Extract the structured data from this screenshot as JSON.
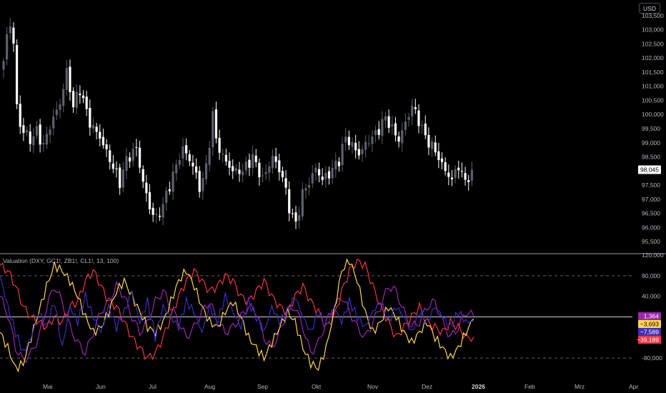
{
  "currency_button": "USD",
  "indicator_label": "Valuation (DXY, GC1!, ZB1!, CL1!, 13, 100)",
  "chart_data": [
    {
      "type": "candlestick",
      "title": "",
      "ylim": [
        95200,
        103800
      ],
      "y_ticks": [
        "103,500",
        "103,000",
        "102,500",
        "102,000",
        "101,500",
        "101,000",
        "100,500",
        "100,000",
        "99,500",
        "99,000",
        "98,500",
        "98,000",
        "97,500",
        "97,000",
        "96,500",
        "96,000",
        "95,500"
      ],
      "y_tick_values": [
        103500,
        103000,
        102500,
        102000,
        101500,
        101000,
        100500,
        100000,
        99500,
        99000,
        98500,
        98000,
        97500,
        97000,
        96500,
        96000,
        95500
      ],
      "last_price_label": "98,045",
      "last_price": 98045,
      "x_month_labels": [
        "Mai",
        "Jun",
        "Jul",
        "Aug",
        "Sep",
        "Okt",
        "Nov",
        "Dez",
        "2026",
        "Feb",
        "Mrz",
        "Apr"
      ],
      "anchors": [
        [
          0,
          101800
        ],
        [
          1,
          102800
        ],
        [
          2,
          103200
        ],
        [
          3,
          102500
        ],
        [
          4,
          100300
        ],
        [
          5,
          99600
        ],
        [
          8,
          99100
        ],
        [
          10,
          99400
        ],
        [
          12,
          98900
        ],
        [
          14,
          99600
        ],
        [
          17,
          100400
        ],
        [
          19,
          101500
        ],
        [
          21,
          100300
        ],
        [
          23,
          100900
        ],
        [
          26,
          99700
        ],
        [
          29,
          99200
        ],
        [
          32,
          98400
        ],
        [
          35,
          97600
        ],
        [
          37,
          98400
        ],
        [
          40,
          98800
        ],
        [
          42,
          97600
        ],
        [
          44,
          96700
        ],
        [
          46,
          96300
        ],
        [
          48,
          96800
        ],
        [
          50,
          97500
        ],
        [
          52,
          98200
        ],
        [
          54,
          98800
        ],
        [
          57,
          98200
        ],
        [
          59,
          97400
        ],
        [
          61,
          98100
        ],
        [
          63,
          100000
        ],
        [
          64,
          99100
        ],
        [
          66,
          98500
        ],
        [
          69,
          98000
        ],
        [
          72,
          98000
        ],
        [
          75,
          98500
        ],
        [
          78,
          97700
        ],
        [
          81,
          98500
        ],
        [
          84,
          97800
        ],
        [
          86,
          96700
        ],
        [
          88,
          96100
        ],
        [
          90,
          97200
        ],
        [
          92,
          97600
        ],
        [
          94,
          98100
        ],
        [
          96,
          97700
        ],
        [
          98,
          97900
        ],
        [
          101,
          98400
        ],
        [
          103,
          99200
        ],
        [
          105,
          98900
        ],
        [
          107,
          98600
        ],
        [
          110,
          99100
        ],
        [
          112,
          99300
        ],
        [
          115,
          99900
        ],
        [
          117,
          99500
        ],
        [
          119,
          99100
        ],
        [
          121,
          99700
        ],
        [
          123,
          100300
        ],
        [
          125,
          99800
        ],
        [
          127,
          99200
        ],
        [
          130,
          98700
        ],
        [
          133,
          98000
        ],
        [
          135,
          97700
        ],
        [
          137,
          98200
        ],
        [
          139,
          97600
        ],
        [
          141,
          98045
        ]
      ],
      "legend": [],
      "grid": false
    },
    {
      "type": "line",
      "ylim": [
        -120000,
        120000
      ],
      "y_ticks": [
        "120,000",
        "80,000",
        "40,000",
        "-80,000"
      ],
      "y_tick_values": [
        120000,
        80000,
        40000,
        -80000
      ],
      "reference_lines": [
        80000,
        0,
        -80000
      ],
      "last_value_tags": [
        {
          "label": "1,364",
          "value": 1364,
          "color": "#9c27b0",
          "text_color": "#ffffff"
        },
        {
          "label": "−3,693",
          "value": -3693,
          "color": "#ffd54f",
          "text_color": "#000000"
        },
        {
          "label": "−7,589",
          "value": -7589,
          "color": "#3f2fb5",
          "text_color": "#ffffff"
        },
        {
          "label": "−39,189",
          "value": -39189,
          "color": "#f23645",
          "text_color": "#ffffff"
        }
      ],
      "series": [
        {
          "color": "#9c27b0",
          "values": [
            40000,
            5000,
            -60000,
            -85000,
            -70000,
            -40000,
            20000,
            60000,
            30000,
            -20000,
            -50000,
            -70000,
            -30000,
            10000,
            30000,
            60000,
            40000,
            0,
            -30000,
            -10000,
            30000,
            50000,
            20000,
            -10000,
            -40000,
            -20000,
            10000,
            30000,
            -10000,
            -30000,
            -20000,
            0,
            20000,
            10000,
            -40000,
            -60000,
            -30000,
            10000,
            20000,
            -20000,
            -70000,
            -50000,
            -10000,
            20000,
            40000,
            10000,
            -20000,
            -40000,
            -10000,
            20000,
            60000,
            50000,
            10000,
            -20000,
            -10000,
            20000,
            30000,
            -10000,
            -40000,
            -20000,
            10000,
            1364
          ]
        },
        {
          "color": "#f23645",
          "values": [
            100000,
            90000,
            60000,
            20000,
            0,
            -10000,
            -20000,
            0,
            -10000,
            20000,
            30000,
            70000,
            90000,
            60000,
            30000,
            20000,
            -10000,
            -40000,
            -60000,
            -80000,
            -70000,
            -40000,
            0,
            40000,
            70000,
            90000,
            70000,
            50000,
            60000,
            80000,
            70000,
            40000,
            30000,
            50000,
            70000,
            40000,
            20000,
            10000,
            40000,
            60000,
            30000,
            10000,
            -20000,
            0,
            50000,
            90000,
            110000,
            100000,
            60000,
            20000,
            -10000,
            -40000,
            -20000,
            0,
            20000,
            -10000,
            -20000,
            -30000,
            -10000,
            -20000,
            -40000,
            -39189
          ]
        },
        {
          "color": "#ffd54f",
          "values": [
            -30000,
            -60000,
            -100000,
            -90000,
            -40000,
            10000,
            60000,
            100000,
            90000,
            70000,
            40000,
            0,
            -30000,
            -20000,
            10000,
            50000,
            70000,
            40000,
            10000,
            -20000,
            -30000,
            -10000,
            30000,
            70000,
            90000,
            60000,
            20000,
            -10000,
            -20000,
            10000,
            30000,
            0,
            -40000,
            -60000,
            -80000,
            -50000,
            -20000,
            10000,
            -10000,
            -60000,
            -90000,
            -100000,
            -60000,
            10000,
            90000,
            110000,
            70000,
            10000,
            -30000,
            -10000,
            20000,
            0,
            -30000,
            -50000,
            -30000,
            -10000,
            -40000,
            -60000,
            -80000,
            -60000,
            -30000,
            -3693
          ]
        },
        {
          "color": "#3f2fb5",
          "values": [
            80000,
            20000,
            -30000,
            -70000,
            -40000,
            10000,
            -20000,
            30000,
            -60000,
            20000,
            -10000,
            40000,
            0,
            -30000,
            20000,
            -20000,
            10000,
            50000,
            -10000,
            30000,
            -40000,
            20000,
            0,
            -20000,
            30000,
            10000,
            -30000,
            20000,
            -10000,
            40000,
            10000,
            -20000,
            30000,
            0,
            -30000,
            20000,
            -10000,
            10000,
            40000,
            0,
            -30000,
            10000,
            -20000,
            20000,
            -10000,
            30000,
            0,
            -20000,
            10000,
            30000,
            -10000,
            20000,
            0,
            -30000,
            10000,
            -10000,
            20000,
            0,
            -20000,
            10000,
            -10000,
            -7589
          ]
        }
      ]
    }
  ]
}
